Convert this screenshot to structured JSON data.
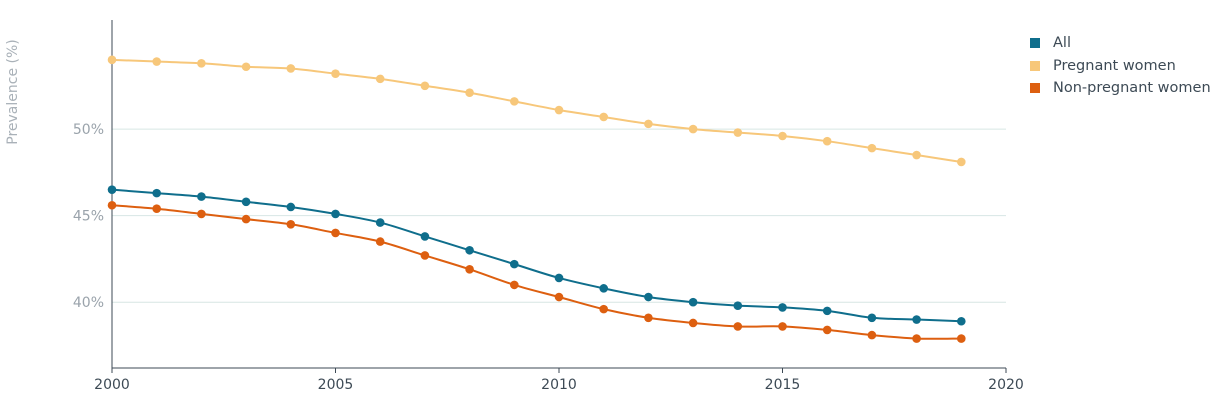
{
  "chart_data": {
    "type": "line",
    "ylabel": "Prevalence (%)",
    "xlabel": "",
    "x_ticks": [
      "2000",
      "2005",
      "2010",
      "2015",
      "2020"
    ],
    "y_ticks": [
      "40%",
      "45%",
      "50%"
    ],
    "xlim": [
      2000,
      2020
    ],
    "ylim": [
      36.2,
      56.3
    ],
    "grid": "horizontal",
    "legend_position": "top-right",
    "x": [
      2000,
      2001,
      2002,
      2003,
      2004,
      2005,
      2006,
      2007,
      2008,
      2009,
      2010,
      2011,
      2012,
      2013,
      2014,
      2015,
      2016,
      2017,
      2018,
      2019
    ],
    "series": [
      {
        "name": "All",
        "color": "#0f6e8c",
        "values": [
          46.5,
          46.3,
          46.1,
          45.8,
          45.5,
          45.1,
          44.6,
          43.8,
          43.0,
          42.2,
          41.4,
          40.8,
          40.3,
          40.0,
          39.8,
          39.7,
          39.5,
          39.1,
          39.0,
          38.9
        ]
      },
      {
        "name": "Pregnant women",
        "color": "#f7c77a",
        "values": [
          54.0,
          53.9,
          53.8,
          53.6,
          53.5,
          53.2,
          52.9,
          52.5,
          52.1,
          51.6,
          51.1,
          50.7,
          50.3,
          50.0,
          49.8,
          49.6,
          49.3,
          48.9,
          48.5,
          48.1
        ]
      },
      {
        "name": "Non-pregnant women",
        "color": "#dd5f10",
        "values": [
          45.6,
          45.4,
          45.1,
          44.8,
          44.5,
          44.0,
          43.5,
          42.7,
          41.9,
          41.0,
          40.3,
          39.6,
          39.1,
          38.8,
          38.6,
          38.6,
          38.4,
          38.1,
          37.9,
          37.9
        ]
      }
    ]
  }
}
